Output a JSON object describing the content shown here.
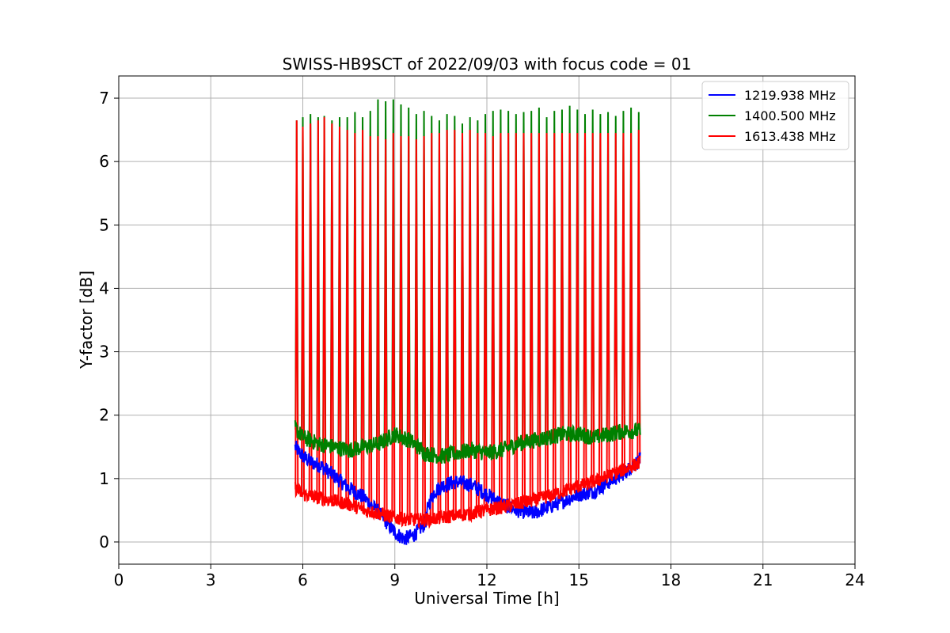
{
  "chart_data": {
    "type": "line",
    "title": "SWISS-HB9SCT of 2022/09/03 with focus code = 01",
    "xlabel": "Universal Time [h]",
    "ylabel": "Y-factor [dB]",
    "xlim": [
      0,
      24
    ],
    "ylim": [
      -0.35,
      7.35
    ],
    "xticks": [
      0,
      3,
      6,
      9,
      12,
      15,
      18,
      21,
      24
    ],
    "yticks": [
      0,
      1,
      2,
      3,
      4,
      5,
      6,
      7
    ],
    "grid": true,
    "legend_position": "top-right",
    "series": [
      {
        "name": "1219.938 MHz",
        "color": "#0000ff",
        "x": [
          5.75,
          6.0,
          6.3,
          6.6,
          7.0,
          7.5,
          8.0,
          8.5,
          9.0,
          9.3,
          9.6,
          10.0,
          10.1,
          10.3,
          10.6,
          11.0,
          11.5,
          12.0,
          12.5,
          13.0,
          13.5,
          14.0,
          14.5,
          15.0,
          15.5,
          16.0,
          16.5,
          17.0
        ],
        "values": [
          1.5,
          1.35,
          1.25,
          1.2,
          1.05,
          0.85,
          0.7,
          0.45,
          0.15,
          0.05,
          0.1,
          0.3,
          0.6,
          0.8,
          0.9,
          0.95,
          0.9,
          0.75,
          0.6,
          0.5,
          0.45,
          0.55,
          0.65,
          0.75,
          0.8,
          0.95,
          1.1,
          1.3
        ]
      },
      {
        "name": "1400.500 MHz",
        "color": "#008000",
        "x": [
          5.75,
          6.0,
          6.5,
          7.0,
          7.5,
          8.0,
          8.5,
          9.0,
          9.5,
          10.0,
          10.5,
          11.0,
          11.5,
          12.0,
          12.5,
          13.0,
          13.5,
          14.0,
          14.5,
          15.0,
          15.5,
          16.0,
          16.5,
          17.0
        ],
        "values": [
          1.8,
          1.65,
          1.55,
          1.5,
          1.45,
          1.5,
          1.55,
          1.7,
          1.6,
          1.4,
          1.35,
          1.4,
          1.45,
          1.4,
          1.45,
          1.55,
          1.6,
          1.65,
          1.7,
          1.7,
          1.65,
          1.7,
          1.75,
          1.75
        ]
      },
      {
        "name": "1613.438 MHz",
        "color": "#ff0000",
        "x": [
          5.75,
          6.0,
          6.5,
          7.0,
          7.5,
          8.0,
          8.5,
          9.0,
          9.5,
          10.0,
          10.5,
          11.0,
          11.5,
          12.0,
          12.5,
          13.0,
          13.5,
          14.0,
          14.5,
          15.0,
          15.5,
          16.0,
          16.5,
          17.0
        ],
        "values": [
          0.85,
          0.75,
          0.7,
          0.65,
          0.6,
          0.5,
          0.45,
          0.38,
          0.35,
          0.35,
          0.38,
          0.42,
          0.45,
          0.5,
          0.55,
          0.6,
          0.65,
          0.72,
          0.8,
          0.88,
          0.95,
          1.05,
          1.15,
          1.25
        ]
      }
    ],
    "spikes": {
      "x": [
        5.8,
        6.0,
        6.25,
        6.5,
        6.7,
        6.95,
        7.2,
        7.45,
        7.7,
        7.95,
        8.2,
        8.45,
        8.7,
        8.95,
        9.2,
        9.45,
        9.7,
        9.95,
        10.2,
        10.45,
        10.7,
        10.95,
        11.2,
        11.45,
        11.7,
        11.95,
        12.2,
        12.45,
        12.7,
        12.95,
        13.2,
        13.45,
        13.7,
        13.95,
        14.2,
        14.45,
        14.7,
        14.95,
        15.2,
        15.45,
        15.7,
        15.95,
        16.2,
        16.45,
        16.7,
        16.95
      ],
      "green_peak": [
        6.65,
        6.7,
        6.75,
        6.7,
        6.72,
        6.65,
        6.7,
        6.7,
        6.78,
        6.7,
        6.8,
        6.98,
        6.95,
        6.98,
        6.9,
        6.85,
        6.75,
        6.8,
        6.72,
        6.65,
        6.75,
        6.72,
        6.6,
        6.7,
        6.65,
        6.75,
        6.8,
        6.82,
        6.8,
        6.75,
        6.78,
        6.8,
        6.85,
        6.7,
        6.8,
        6.82,
        6.88,
        6.82,
        6.75,
        6.82,
        6.75,
        6.78,
        6.72,
        6.8,
        6.85,
        6.78
      ],
      "red_peak": [
        6.65,
        6.55,
        6.6,
        6.65,
        6.7,
        6.6,
        6.55,
        6.5,
        6.45,
        6.5,
        6.4,
        6.4,
        6.35,
        6.45,
        6.4,
        6.4,
        6.35,
        6.4,
        6.45,
        6.45,
        6.5,
        6.5,
        6.45,
        6.5,
        6.45,
        6.45,
        6.4,
        6.45,
        6.45,
        6.45,
        6.45,
        6.45,
        6.45,
        6.45,
        6.45,
        6.45,
        6.45,
        6.45,
        6.45,
        6.45,
        6.45,
        6.45,
        6.45,
        6.45,
        6.45,
        6.5
      ]
    }
  }
}
